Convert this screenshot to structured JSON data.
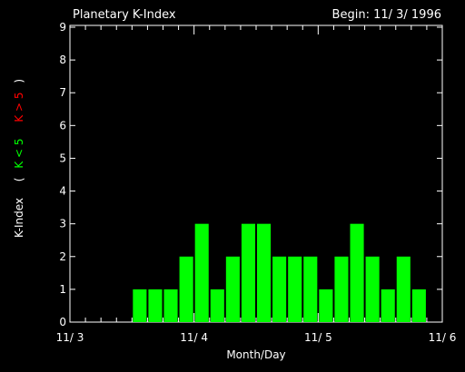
{
  "chart_data": {
    "type": "bar",
    "title": "Planetary K-Index",
    "subtitle": "Begin: 11/ 3/ 1996",
    "xlabel": "Month/Day",
    "ylabel": {
      "main": "K-Index",
      "paren_open": "(",
      "green_part": "K < 5",
      "red_part": "K > 5",
      "paren_close": ")"
    },
    "ylim": [
      0,
      9
    ],
    "y_ticks": [
      0,
      1,
      2,
      3,
      4,
      5,
      6,
      7,
      8,
      9
    ],
    "x_ticks": [
      "11/ 3",
      "11/ 4",
      "11/ 5",
      "11/ 6"
    ],
    "x_range_intervals": 24,
    "values": [
      0,
      0,
      0,
      0,
      1,
      1,
      1,
      2,
      3,
      1,
      2,
      3,
      3,
      2,
      2,
      2,
      1,
      2,
      3,
      2,
      1,
      2,
      1,
      0
    ],
    "colors": {
      "bar_low": "#00ff00",
      "bar_high": "#ff0000",
      "axis": "#ffffff",
      "label_green": "#00ff00",
      "label_red": "#ff0000",
      "background": "#000000"
    }
  }
}
